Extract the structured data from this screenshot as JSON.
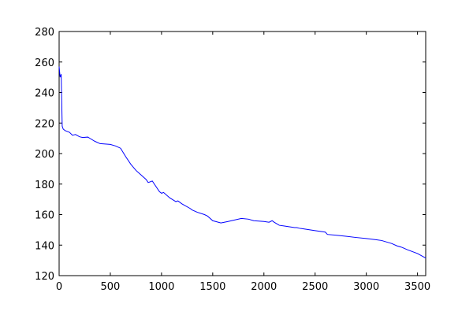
{
  "chart_data": {
    "type": "line",
    "color": "#0000ff",
    "x": [
      0,
      10,
      20,
      25,
      30,
      40,
      60,
      100,
      130,
      160,
      200,
      230,
      280,
      300,
      350,
      400,
      500,
      550,
      600,
      650,
      700,
      750,
      800,
      850,
      870,
      910,
      950,
      980,
      1000,
      1020,
      1080,
      1140,
      1160,
      1200,
      1280,
      1300,
      1350,
      1420,
      1450,
      1500,
      1580,
      1650,
      1780,
      1850,
      1900,
      2000,
      2050,
      2080,
      2100,
      2150,
      2200,
      2250,
      2300,
      2320,
      2350,
      2400,
      2500,
      2600,
      2620,
      2700,
      2800,
      2900,
      3000,
      3100,
      3150,
      3250,
      3300,
      3350,
      3400,
      3500,
      3580
    ],
    "values": [
      257,
      250,
      252,
      235,
      218,
      216,
      215,
      214,
      212,
      212.5,
      211,
      210.5,
      210.8,
      210,
      208,
      206.5,
      206,
      205,
      203.5,
      198,
      193,
      189,
      186,
      183,
      181,
      182,
      178,
      175,
      174,
      174.5,
      171,
      168.5,
      169,
      167,
      164,
      163,
      161.5,
      160,
      159,
      156,
      154.5,
      155.5,
      157.5,
      157,
      156,
      155.5,
      155,
      156,
      155,
      153,
      152.5,
      152,
      151.5,
      151.5,
      151,
      150.5,
      149.5,
      148.5,
      147,
      146.5,
      145.8,
      145,
      144.3,
      143.5,
      143,
      141,
      139.5,
      138.5,
      137,
      134.5,
      131.5
    ],
    "xlim": [
      0,
      3580
    ],
    "ylim": [
      120,
      280
    ],
    "xticks": [
      0,
      500,
      1000,
      1500,
      2000,
      2500,
      3000,
      3500
    ],
    "yticks": [
      120,
      140,
      160,
      180,
      200,
      220,
      240,
      260,
      280
    ]
  }
}
